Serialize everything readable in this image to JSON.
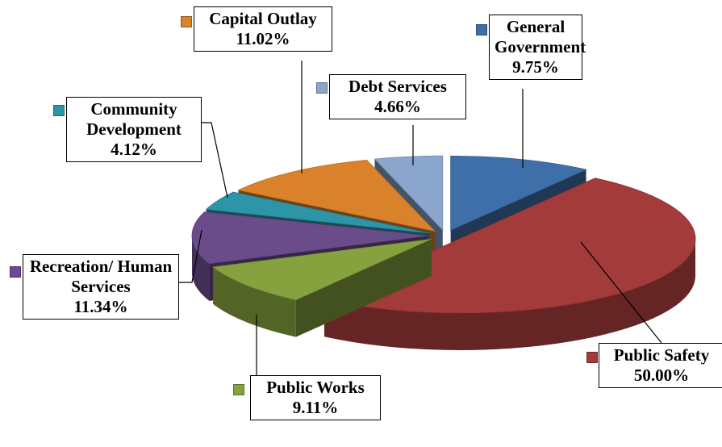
{
  "chart_data": {
    "type": "pie",
    "categories": [
      "General Government",
      "Public Safety",
      "Public Works",
      "Recreation/ Human Services",
      "Community Development",
      "Capital Outlay",
      "Debt Services"
    ],
    "values": [
      9.75,
      50.0,
      9.11,
      11.34,
      4.12,
      11.02,
      4.66
    ],
    "value_labels": [
      "9.75%",
      "50.00%",
      "9.11%",
      "11.34%",
      "4.12%",
      "11.02%",
      "4.66%"
    ],
    "colors": [
      "#3f6fa8",
      "#a33b3a",
      "#86a23f",
      "#6b4c8a",
      "#2e94a8",
      "#d9822b",
      "#8aa6cc"
    ]
  }
}
